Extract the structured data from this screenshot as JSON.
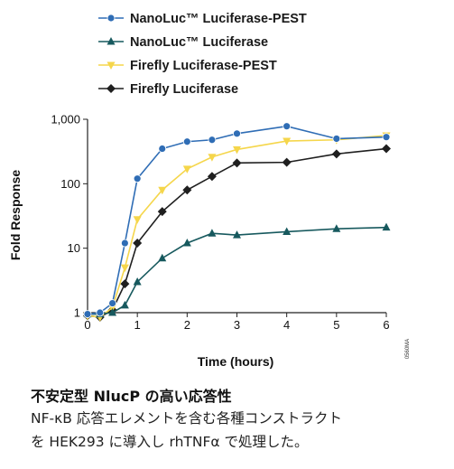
{
  "chart_data": {
    "type": "line",
    "xlabel": "Time (hours)",
    "ylabel": "Fold Response",
    "yscale": "log",
    "xlim": [
      0,
      6
    ],
    "ylim": [
      1,
      1000
    ],
    "x_ticks": [
      0,
      1,
      2,
      3,
      4,
      5,
      6
    ],
    "y_ticks": [
      {
        "value": 1,
        "label": "1"
      },
      {
        "value": 10,
        "label": "10"
      },
      {
        "value": 100,
        "label": "100"
      },
      {
        "value": 1000,
        "label": "1,000"
      }
    ],
    "legend_position": "top",
    "watermark": "0560MA",
    "series": [
      {
        "name": "NanoLuc™ Luciferase-PEST",
        "color": "#2f6db5",
        "marker": "circle",
        "points": [
          [
            0,
            0.95
          ],
          [
            0.25,
            1.0
          ],
          [
            0.5,
            1.4
          ],
          [
            0.75,
            12
          ],
          [
            1,
            120
          ],
          [
            1.5,
            350
          ],
          [
            2,
            450
          ],
          [
            2.5,
            480
          ],
          [
            3,
            600
          ],
          [
            4,
            780
          ],
          [
            5,
            500
          ],
          [
            6,
            530
          ]
        ]
      },
      {
        "name": "NanoLuc™ Luciferase",
        "color": "#17595e",
        "marker": "triangle",
        "points": [
          [
            0,
            0.95
          ],
          [
            0.25,
            0.95
          ],
          [
            0.5,
            1.0
          ],
          [
            0.75,
            1.3
          ],
          [
            1,
            3
          ],
          [
            1.5,
            7
          ],
          [
            2,
            12
          ],
          [
            2.5,
            17
          ],
          [
            3,
            16
          ],
          [
            4,
            18
          ],
          [
            5,
            20
          ],
          [
            6,
            21
          ]
        ]
      },
      {
        "name": "Firefly Luciferase-PEST",
        "color": "#f5d64b",
        "marker": "triangle-down",
        "points": [
          [
            0,
            0.9
          ],
          [
            0.25,
            0.85
          ],
          [
            0.5,
            1.2
          ],
          [
            0.75,
            5
          ],
          [
            1,
            28
          ],
          [
            1.5,
            80
          ],
          [
            2,
            170
          ],
          [
            2.5,
            260
          ],
          [
            3,
            340
          ],
          [
            4,
            460
          ],
          [
            5,
            480
          ],
          [
            6,
            560
          ]
        ]
      },
      {
        "name": "Firefly Luciferase",
        "color": "#1f1f1f",
        "marker": "diamond",
        "points": [
          [
            0,
            0.9
          ],
          [
            0.25,
            0.85
          ],
          [
            0.5,
            1.1
          ],
          [
            0.75,
            2.8
          ],
          [
            1,
            12
          ],
          [
            1.5,
            37
          ],
          [
            2,
            80
          ],
          [
            2.5,
            130
          ],
          [
            3,
            210
          ],
          [
            4,
            215
          ],
          [
            5,
            290
          ],
          [
            6,
            350
          ]
        ]
      }
    ]
  },
  "caption": {
    "title": "不安定型 NlucP の高い応答性",
    "body": "NF-κB 応答エレメントを含む各種コンストラクト\nを HEK293 に導入し rhTNFα で処理した。"
  }
}
